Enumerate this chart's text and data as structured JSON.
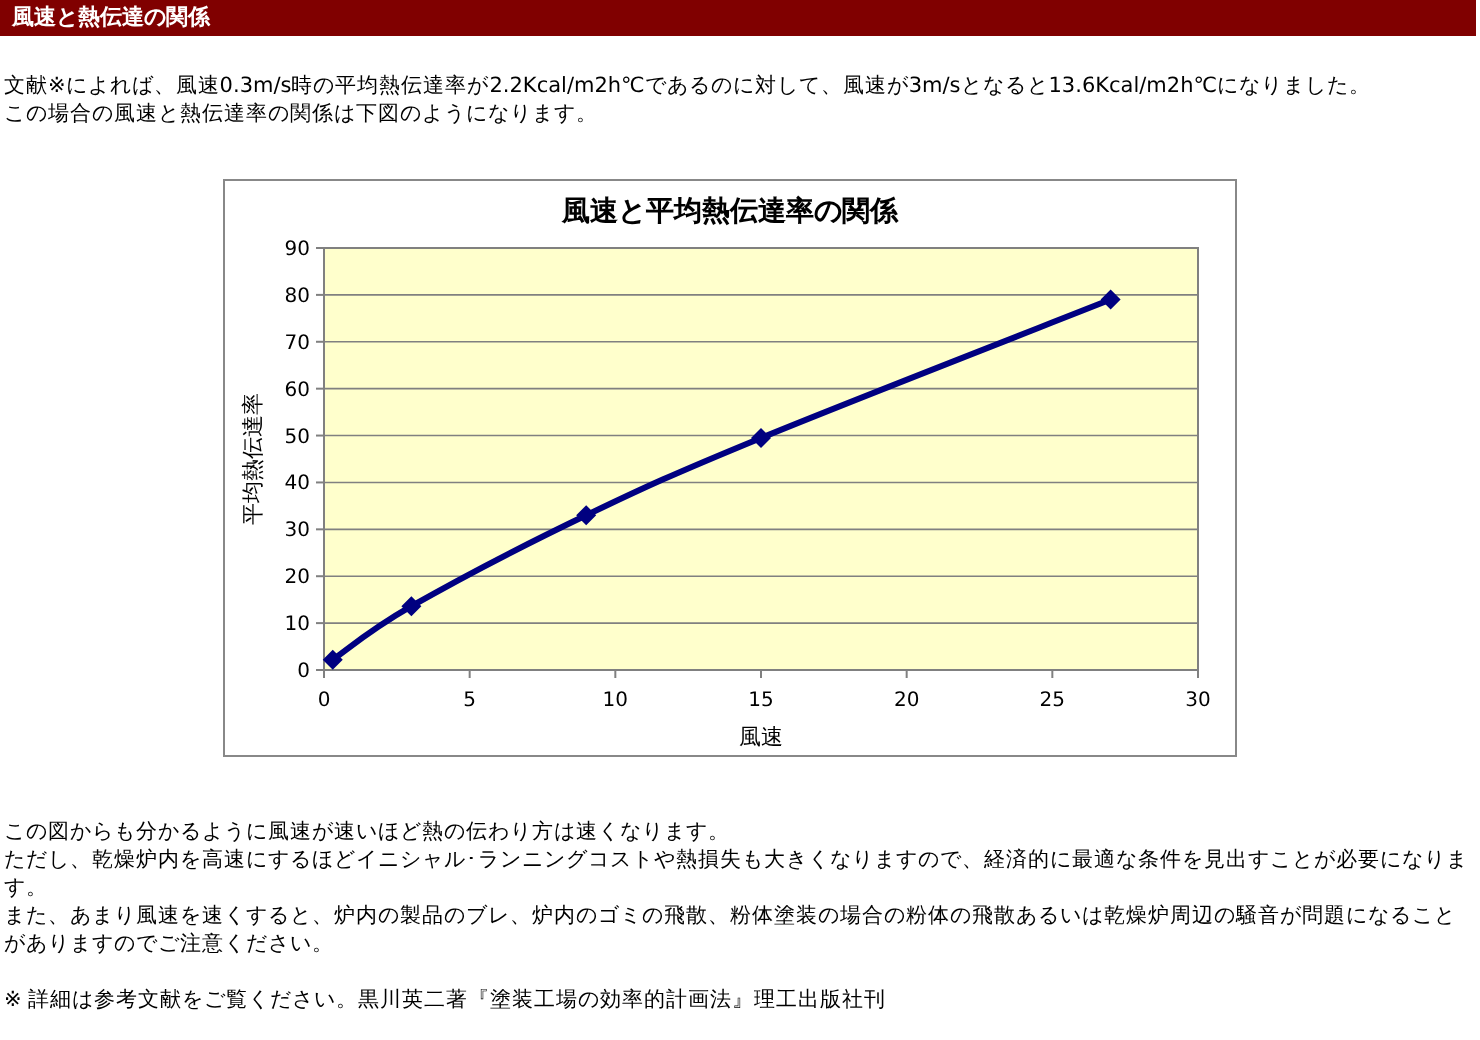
{
  "chart_data": {
    "type": "line",
    "title": "風速と平均熱伝達率の関係",
    "xlabel": "風速",
    "ylabel": "平均熱伝達率",
    "x": [
      0.3,
      3,
      9,
      15,
      27
    ],
    "series": [
      {
        "color": "#000080",
        "values": [
          2.2,
          13.6,
          33,
          49.5,
          79
        ]
      }
    ],
    "xlim": [
      0,
      30
    ],
    "ylim": [
      0,
      90
    ],
    "xticks": [
      0,
      5,
      10,
      15,
      20,
      25,
      30
    ],
    "yticks": [
      0,
      10,
      20,
      30,
      40,
      50,
      60,
      70,
      80,
      90
    ],
    "grid": "y",
    "marker": "diamond",
    "annotations": [
      "風速と熱伝達の関係",
      "文献※によれば、風速0.3m/s時の平均熱伝達率が2.2Kcal/m2h℃であるのに対して、風速が3m/sとなると13.6Kcal/m2h℃になりました。",
      "この場合の風速と熱伝達率の関係は下図のようになります。",
      "この図からも分かるように風速が速いほど熱の伝わり方は速くなります。",
      "ただし、乾燥炉内を高速にするほどイニシャル･ランニングコストや熱損失も大きくなりますので、経済的に最適な条件を見出すことが必要になります。",
      "また、あまり風速を速くすると、炉内の製品のブレ、炉内のゴミの飛散、粉体塗装の場合の粉体の飛散あるいは乾燥炉周辺の騒音が問題になることがありますのでご注意ください。",
      "※ 詳細は参考文献をご覧ください。黒川英二著『塗装工場の効率的計画法』理工出版社刊"
    ]
  }
}
